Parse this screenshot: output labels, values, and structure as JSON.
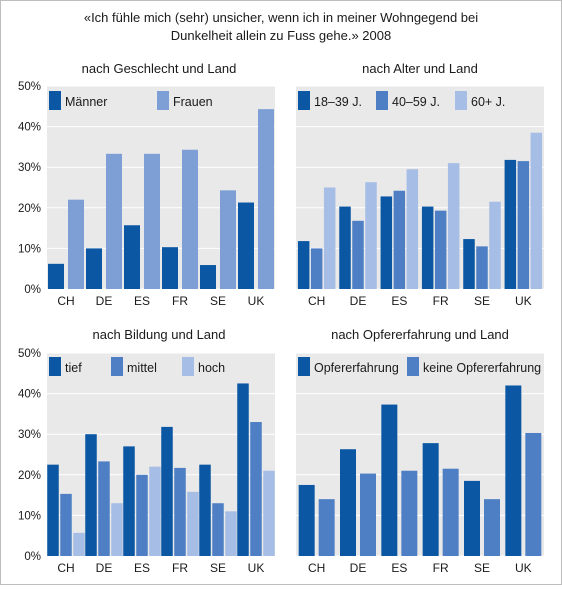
{
  "title": {
    "line1": "«Ich fühle mich (sehr) unsicher, wenn ich in meiner Wohngegend bei",
    "line2": "Dunkelheit allein zu Fuss gehe.» 2008"
  },
  "colors": {
    "dark": "#0b57a3",
    "mid": "#4e7fc4",
    "light": "#7d9fd6",
    "pale": "#a6bde6",
    "panel": "#e9e9e9"
  },
  "chart_data": [
    {
      "type": "bar",
      "title": "nach Geschlecht und Land",
      "categories": [
        "CH",
        "DE",
        "ES",
        "FR",
        "SE",
        "UK"
      ],
      "y_ticks": [
        "50%",
        "40%",
        "30%",
        "20%",
        "10%",
        "0%"
      ],
      "ylim": [
        0,
        50
      ],
      "series": [
        {
          "name": "Männer",
          "color": "#0b57a3",
          "values": [
            6.2,
            10.0,
            15.7,
            10.3,
            5.9,
            21.3
          ]
        },
        {
          "name": "Frauen",
          "color": "#7d9fd6",
          "values": [
            22.0,
            33.3,
            33.3,
            34.3,
            24.3,
            44.3
          ]
        }
      ]
    },
    {
      "type": "bar",
      "title": "nach Alter und Land",
      "categories": [
        "CH",
        "DE",
        "ES",
        "FR",
        "SE",
        "UK"
      ],
      "ylim": [
        0,
        50
      ],
      "series": [
        {
          "name": "18–39 J.",
          "color": "#0b57a3",
          "values": [
            11.8,
            20.3,
            22.8,
            20.3,
            12.3,
            31.8
          ]
        },
        {
          "name": "40–59 J.",
          "color": "#4e7fc4",
          "values": [
            10.0,
            16.8,
            24.2,
            19.3,
            10.5,
            31.5
          ]
        },
        {
          "name": "60+ J.",
          "color": "#a6bde6",
          "values": [
            25.0,
            26.3,
            29.5,
            31.0,
            21.5,
            38.5
          ]
        }
      ]
    },
    {
      "type": "bar",
      "title": "nach Bildung und Land",
      "categories": [
        "CH",
        "DE",
        "ES",
        "FR",
        "SE",
        "UK"
      ],
      "y_ticks": [
        "50%",
        "40%",
        "30%",
        "20%",
        "10%",
        "0%"
      ],
      "ylim": [
        0,
        50
      ],
      "series": [
        {
          "name": "tief",
          "color": "#0b57a3",
          "values": [
            22.5,
            30.0,
            27.0,
            31.8,
            22.5,
            42.5
          ]
        },
        {
          "name": "mittel",
          "color": "#4e7fc4",
          "values": [
            15.3,
            23.3,
            20.0,
            21.7,
            13.0,
            33.0
          ]
        },
        {
          "name": "hoch",
          "color": "#a6bde6",
          "values": [
            5.7,
            13.0,
            22.0,
            15.8,
            11.0,
            21.0
          ]
        }
      ]
    },
    {
      "type": "bar",
      "title": "nach Opfererfahrung und Land",
      "categories": [
        "CH",
        "DE",
        "ES",
        "FR",
        "SE",
        "UK"
      ],
      "ylim": [
        0,
        50
      ],
      "series": [
        {
          "name": "Opfererfahrung",
          "color": "#0b57a3",
          "values": [
            17.5,
            26.3,
            37.3,
            27.8,
            18.5,
            42.0
          ]
        },
        {
          "name": "keine Opfererfahrung",
          "color": "#4e7fc4",
          "values": [
            14.0,
            20.3,
            21.0,
            21.5,
            14.0,
            30.3
          ]
        }
      ]
    }
  ]
}
